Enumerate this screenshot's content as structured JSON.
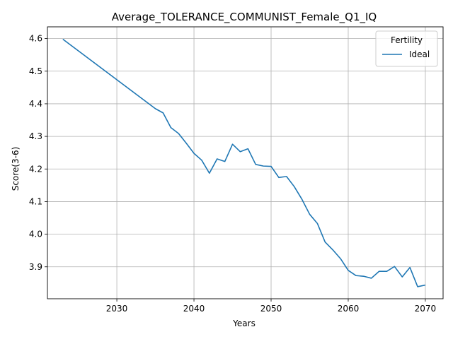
{
  "chart_data": {
    "type": "line",
    "title": "Average_TOLERANCE_COMMUNIST_Female_Q1_IQ",
    "xlabel": "Years",
    "ylabel": "Score(3-6)",
    "xlim": [
      2021,
      2072.3
    ],
    "ylim": [
      3.802,
      4.636
    ],
    "xticks": [
      2030,
      2040,
      2050,
      2060,
      2070
    ],
    "yticks": [
      3.9,
      4.0,
      4.1,
      4.2,
      4.3,
      4.4,
      4.5,
      4.6
    ],
    "grid": true,
    "legend": {
      "title": "Fertility",
      "position": "top-right"
    },
    "colors": {
      "series": "#1f77b4",
      "grid": "#b0b0b0"
    },
    "series": [
      {
        "name": "Ideal",
        "x": [
          2023,
          2035,
          2036,
          2037,
          2038,
          2039,
          2040,
          2041,
          2042,
          2043,
          2044,
          2045,
          2046,
          2047,
          2048,
          2049,
          2050,
          2051,
          2052,
          2053,
          2054,
          2055,
          2056,
          2057,
          2058,
          2059,
          2060,
          2061,
          2062,
          2063,
          2064,
          2065,
          2066,
          2067,
          2068,
          2069,
          2070
        ],
        "values": [
          4.598,
          4.385,
          4.372,
          4.327,
          4.309,
          4.279,
          4.248,
          4.227,
          4.187,
          4.231,
          4.223,
          4.276,
          4.253,
          4.262,
          4.214,
          4.209,
          4.208,
          4.174,
          4.177,
          4.146,
          4.107,
          4.061,
          4.033,
          3.976,
          3.952,
          3.925,
          3.889,
          3.873,
          3.871,
          3.865,
          3.886,
          3.886,
          3.901,
          3.869,
          3.898,
          3.839,
          3.844
        ]
      }
    ]
  }
}
